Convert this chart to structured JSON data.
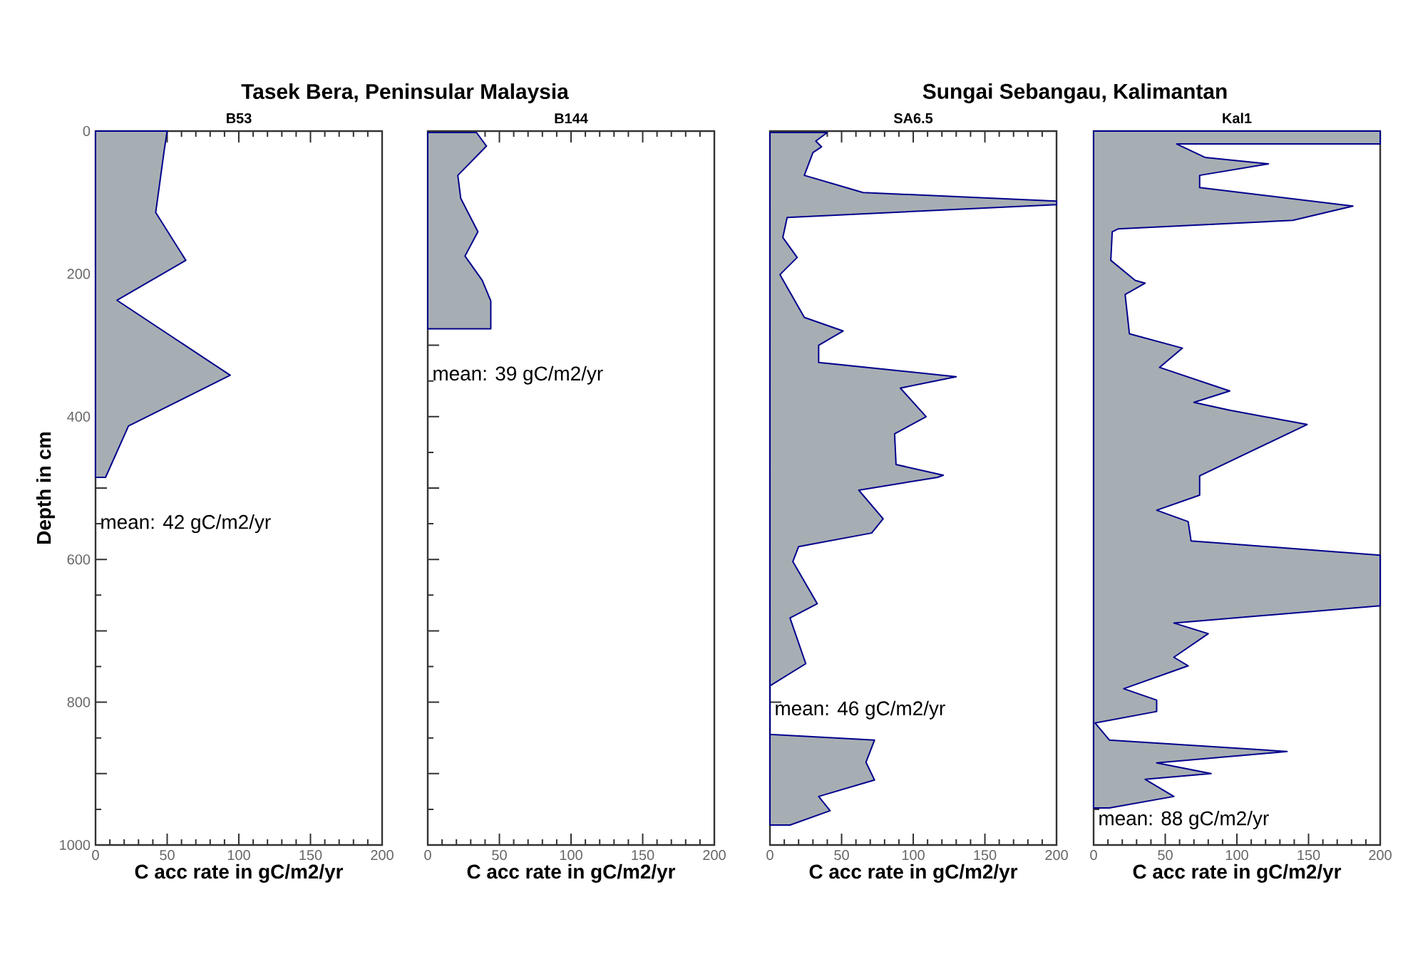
{
  "chart_data": [
    {
      "type": "area",
      "orientation": "horizontal",
      "title": "Tasek Bera, Peninsular Malaysia",
      "subtitle": "B53",
      "xlabel": "C acc rate in gC/m2/yr",
      "ylabel": "Depth in cm",
      "annotations": [
        "mean: 42 gC/m2/yr"
      ],
      "x": [
        0,
        26,
        114,
        181,
        237,
        342,
        413,
        485
      ],
      "series": [
        {
          "color": "#a7aeb3",
          "values": [
            50,
            48,
            42,
            63,
            15,
            94,
            23,
            7
          ]
        }
      ],
      "xlim": [
        0,
        200
      ],
      "xticks": [
        0,
        50,
        100,
        150,
        200
      ],
      "ylim": [
        1000,
        0
      ],
      "yticks": [
        0,
        {
          "value": 100,
          "label": null
        },
        200,
        {
          "value": 300,
          "label": null
        },
        400,
        {
          "value": 500,
          "label": null
        },
        600,
        {
          "value": 700,
          "label": null
        },
        800,
        {
          "value": 900,
          "label": null
        },
        1000
      ]
    },
    {
      "type": "area",
      "orientation": "horizontal",
      "subtitle": "B144",
      "xlabel": "C acc rate in gC/m2/yr",
      "annotations": [
        "mean: 39 gC/m2/yr"
      ],
      "tick_labels": "x",
      "x": [
        2,
        21,
        62,
        94,
        141,
        175,
        209,
        238,
        277
      ],
      "series": [
        {
          "color": "#a7aeb3",
          "values": [
            34,
            41,
            21,
            23,
            35,
            26,
            38,
            44,
            44
          ]
        }
      ],
      "xlim": [
        0,
        200
      ],
      "xticks": [
        0,
        50,
        100,
        150,
        200
      ],
      "ylim": [
        1000,
        0
      ],
      "yticks": [
        0,
        {
          "value": 100,
          "label": null
        },
        200,
        {
          "value": 300,
          "label": null
        },
        400,
        {
          "value": 500,
          "label": null
        },
        600,
        {
          "value": 700,
          "label": null
        },
        800,
        {
          "value": 900,
          "label": null
        },
        1000
      ]
    },
    {
      "type": "area",
      "orientation": "horizontal",
      "title": "Sungai Sebangau, Kalimantan",
      "subtitle": "SA6.5",
      "xlabel": "C acc rate in gC/m2/yr",
      "annotations": [
        "mean: 46 gC/m2/yr"
      ],
      "tick_labels": "x",
      "x": [
        2,
        14,
        22,
        30,
        62,
        86,
        98,
        103,
        121,
        149,
        177,
        201,
        261,
        280,
        300,
        324,
        344,
        360,
        400,
        424,
        467,
        482,
        485,
        503,
        543,
        563,
        582,
        603,
        662,
        682,
        746,
        777,
        845,
        853,
        884,
        909,
        932,
        952,
        972
      ],
      "series": [
        {
          "color": "#a7aeb3",
          "values": [
            40,
            32,
            36,
            30,
            24,
            65,
            200,
            200,
            12,
            9,
            19,
            7,
            24,
            51,
            34,
            34,
            130,
            91,
            109,
            87,
            88,
            121,
            117,
            62,
            79,
            71,
            20,
            16,
            33,
            14,
            25,
            0,
            0,
            73,
            67,
            73,
            34,
            42,
            14
          ]
        }
      ],
      "xlim": [
        0,
        200
      ],
      "xticks": [
        0,
        50,
        100,
        150,
        200
      ],
      "ylim": [
        1000,
        0
      ],
      "yticks": [
        0,
        {
          "value": 100,
          "label": null
        },
        200,
        {
          "value": 300,
          "label": null
        },
        400,
        {
          "value": 500,
          "label": null
        },
        600,
        {
          "value": 700,
          "label": null
        },
        800,
        {
          "value": 900,
          "label": null
        },
        1000
      ]
    },
    {
      "type": "area",
      "orientation": "horizontal",
      "subtitle": "Kal1",
      "xlabel": "C acc rate in gC/m2/yr",
      "annotations": [
        "mean: 88 gC/m2/yr"
      ],
      "tick_labels": "x",
      "x": [
        0,
        18,
        18,
        37,
        46,
        62,
        79,
        105,
        125,
        137,
        141,
        181,
        209,
        213,
        229,
        284,
        304,
        331,
        364,
        380,
        391,
        411,
        483,
        510,
        531,
        547,
        574,
        594,
        665,
        689,
        704,
        737,
        749,
        781,
        797,
        813,
        829,
        853,
        869,
        885,
        900,
        908,
        932,
        948
      ],
      "series": [
        {
          "color": "#a7aeb3",
          "values": [
            200,
            200,
            58,
            78,
            122,
            74,
            74,
            181,
            139,
            17,
            13,
            12,
            29,
            36,
            22,
            25,
            62,
            46,
            95,
            70,
            95,
            149,
            74,
            74,
            44,
            66,
            68,
            200,
            200,
            56,
            80,
            56,
            66,
            21,
            44,
            44,
            1,
            11,
            135,
            44,
            82,
            36,
            56,
            11
          ]
        }
      ],
      "xlim": [
        0,
        200
      ],
      "xticks": [
        0,
        50,
        100,
        150,
        200
      ],
      "ylim": [
        1000,
        0
      ],
      "yticks": [
        0,
        {
          "value": 100,
          "label": null
        },
        200,
        {
          "value": 300,
          "label": null
        },
        400,
        {
          "value": 500,
          "label": null
        },
        600,
        {
          "value": 700,
          "label": null
        },
        800,
        {
          "value": 900,
          "label": null
        },
        1000
      ]
    }
  ]
}
